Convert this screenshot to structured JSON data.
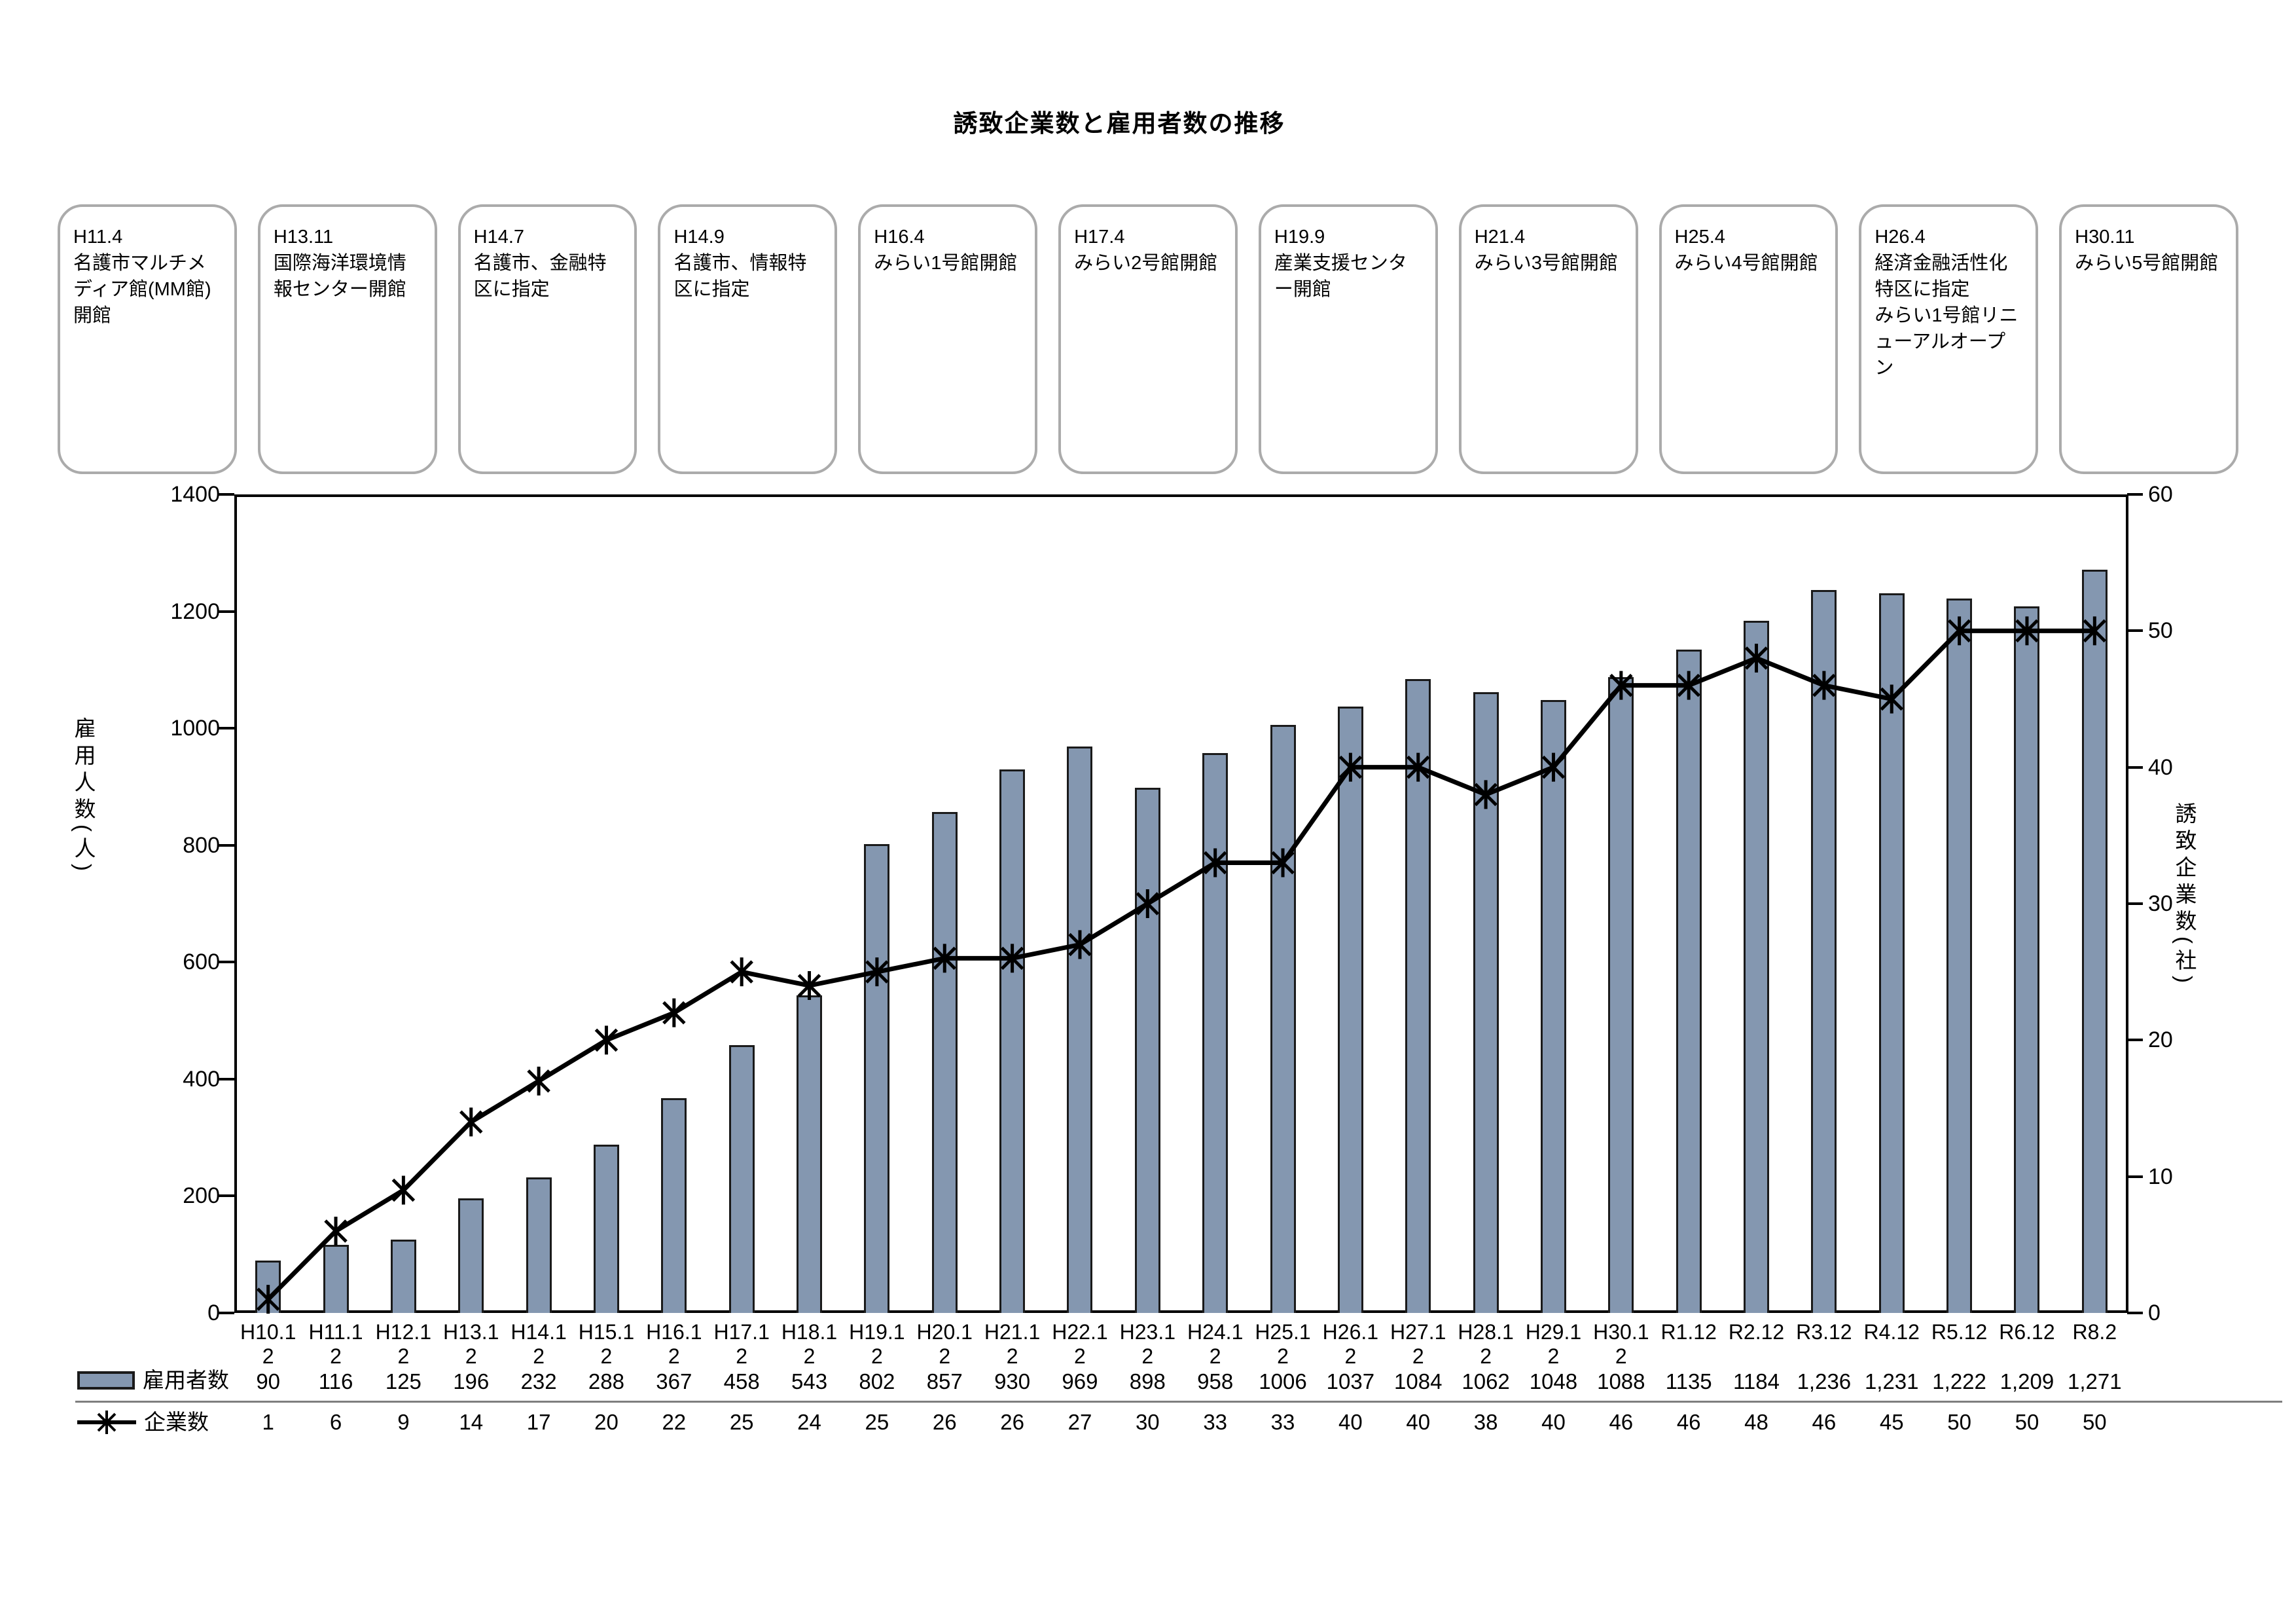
{
  "title": "誘致企業数と雇用者数の推移",
  "annotations": [
    {
      "date": "H11.4",
      "text": "名護市マルチメディア館(MM館)開館"
    },
    {
      "date": "H13.11",
      "text": "国際海洋環境情報センター開館"
    },
    {
      "date": "H14.7",
      "text": "名護市、金融特区に指定"
    },
    {
      "date": "H14.9",
      "text": "名護市、情報特区に指定"
    },
    {
      "date": "H16.4",
      "text": "みらい1号館開館"
    },
    {
      "date": "H17.4",
      "text": "みらい2号館開館"
    },
    {
      "date": "H19.9",
      "text": "産業支援センター開館"
    },
    {
      "date": "H21.4",
      "text": "みらい3号館開館"
    },
    {
      "date": "H25.4",
      "text": "みらい4号館開館"
    },
    {
      "date": "H26.4",
      "text": "経済金融活性化特区に指定\nみらい1号館リニューアルオープン"
    },
    {
      "date": "H30.11",
      "text": "みらい5号館開館"
    }
  ],
  "chart_data": {
    "type": "combo-bar-line",
    "title": "誘致企業数と雇用者数の推移",
    "categories": [
      "H10.12",
      "H11.12",
      "H12.12",
      "H13.12",
      "H14.12",
      "H15.12",
      "H16.12",
      "H17.12",
      "H18.12",
      "H19.12",
      "H20.12",
      "H21.12",
      "H22.12",
      "H23.12",
      "H24.12",
      "H25.12",
      "H26.12",
      "H27.12",
      "H28.12",
      "H29.12",
      "H30.12",
      "R1.12",
      "R2.12",
      "R3.12",
      "R4.12",
      "R5.12",
      "R6.12",
      "R8.2"
    ],
    "categories_display": [
      "H10.1\n2",
      "H11.1\n2",
      "H12.1\n2",
      "H13.1\n2",
      "H14.1\n2",
      "H15.1\n2",
      "H16.1\n2",
      "H17.1\n2",
      "H18.1\n2",
      "H19.1\n2",
      "H20.1\n2",
      "H21.1\n2",
      "H22.1\n2",
      "H23.1\n2",
      "H24.1\n2",
      "H25.1\n2",
      "H26.1\n2",
      "H27.1\n2",
      "H28.1\n2",
      "H29.1\n2",
      "H30.1\n2",
      "R1.12",
      "R2.12",
      "R3.12",
      "R4.12",
      "R5.12",
      "R6.12",
      "R8.2"
    ],
    "series": [
      {
        "name": "雇用者数",
        "type": "bar",
        "axis": "left",
        "values": [
          90,
          116,
          125,
          196,
          232,
          288,
          367,
          458,
          543,
          802,
          857,
          930,
          969,
          898,
          958,
          1006,
          1037,
          1084,
          1062,
          1048,
          1088,
          1135,
          1184,
          1236,
          1231,
          1222,
          1209,
          1271
        ]
      },
      {
        "name": "企業数",
        "type": "line",
        "axis": "right",
        "marker": "asterisk",
        "values": [
          1,
          6,
          9,
          14,
          17,
          20,
          22,
          25,
          24,
          25,
          26,
          26,
          27,
          30,
          33,
          33,
          40,
          40,
          38,
          40,
          46,
          46,
          48,
          46,
          45,
          50,
          50,
          50
        ]
      }
    ],
    "left_axis": {
      "label": "雇用人数(人)",
      "min": 0,
      "max": 1400,
      "step": 200
    },
    "right_axis": {
      "label": "誘致企業数(社)",
      "min": 0,
      "max": 60,
      "step": 10
    },
    "grid": false,
    "legend_position": "table-left",
    "colors": {
      "bar_fill": "#8497B0",
      "bar_border": "#1a1a1a",
      "line": "#000000",
      "box_border": "#ABABAB"
    }
  },
  "table": {
    "employees_label": "雇用者数",
    "employees_display": [
      "90",
      "116",
      "125",
      "196",
      "232",
      "288",
      "367",
      "458",
      "543",
      "802",
      "857",
      "930",
      "969",
      "898",
      "958",
      "1006",
      "1037",
      "1084",
      "1062",
      "1048",
      "1088",
      "1135",
      "1184",
      "1,236",
      "1,231",
      "1,222",
      "1,209",
      "1,271"
    ],
    "companies_label": "企業数",
    "companies_display": [
      "1",
      "6",
      "9",
      "14",
      "17",
      "20",
      "22",
      "25",
      "24",
      "25",
      "26",
      "26",
      "27",
      "30",
      "33",
      "33",
      "40",
      "40",
      "38",
      "40",
      "46",
      "46",
      "48",
      "46",
      "45",
      "50",
      "50",
      "50"
    ]
  }
}
